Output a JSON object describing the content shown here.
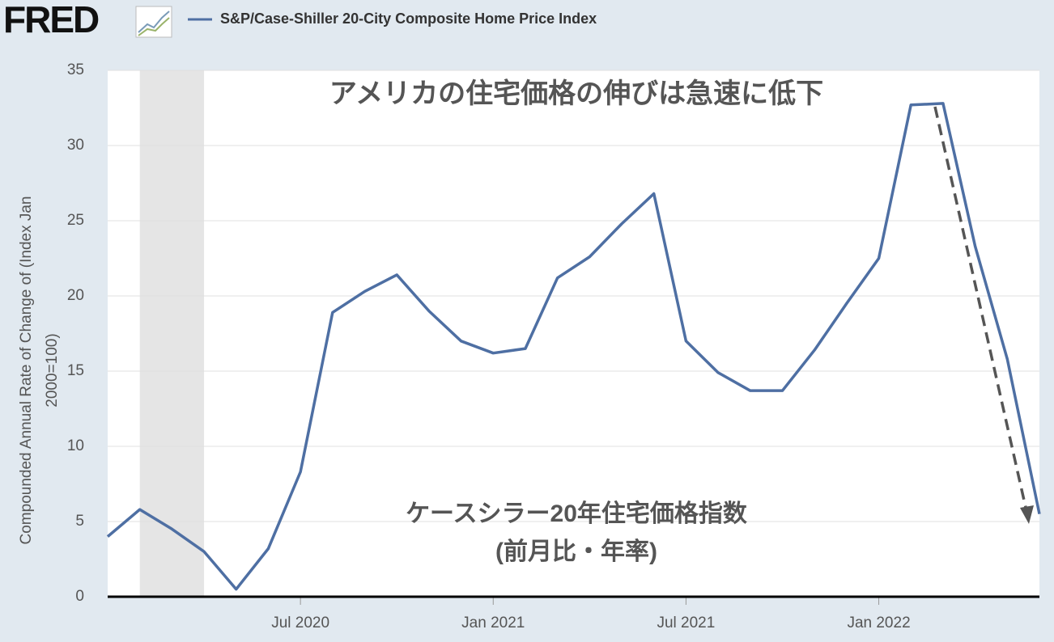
{
  "brand": "FRED",
  "chart_data": {
    "type": "line",
    "title": "アメリカの住宅価格の伸びは急速に低下",
    "annotation": [
      "ケースシラー20年住宅価格指数",
      "(前月比・年率)"
    ],
    "y_label": [
      "Compounded Annual Rate of Change of (Index Jan",
      "2000=100)"
    ],
    "x": [
      "2020-01",
      "2020-02",
      "2020-03",
      "2020-04",
      "2020-05",
      "2020-06",
      "2020-07",
      "2020-08",
      "2020-09",
      "2020-10",
      "2020-11",
      "2020-12",
      "2021-01",
      "2021-02",
      "2021-03",
      "2021-04",
      "2021-05",
      "2021-06",
      "2021-07",
      "2021-08",
      "2021-09",
      "2021-10",
      "2021-11",
      "2021-12",
      "2022-01",
      "2022-02",
      "2022-03",
      "2022-04",
      "2022-05",
      "2022-06"
    ],
    "series": [
      {
        "name": "S&P/Case-Shiller 20-City Composite Home Price Index",
        "color": "#4e6fa3",
        "values": [
          4.0,
          5.8,
          4.5,
          3.0,
          0.5,
          3.2,
          8.3,
          18.9,
          20.3,
          21.4,
          19.0,
          17.0,
          16.2,
          16.5,
          21.2,
          22.6,
          24.8,
          26.8,
          17.0,
          14.9,
          13.7,
          13.7,
          16.4,
          19.5,
          22.5,
          32.7,
          32.8,
          23.3,
          15.8,
          5.5
        ]
      }
    ],
    "recession": [
      "2020-02",
      "2020-04"
    ],
    "xlim": [
      "2020-01",
      "2022-06"
    ],
    "xticks": [
      {
        "value": "2020-07",
        "label": "Jul 2020"
      },
      {
        "value": "2021-01",
        "label": "Jan 2021"
      },
      {
        "value": "2021-07",
        "label": "Jul 2021"
      },
      {
        "value": "2022-01",
        "label": "Jan 2022"
      }
    ],
    "ylim": [
      0,
      35
    ],
    "yticks": [
      0,
      5,
      10,
      15,
      20,
      25,
      30,
      35
    ],
    "grid": true
  }
}
